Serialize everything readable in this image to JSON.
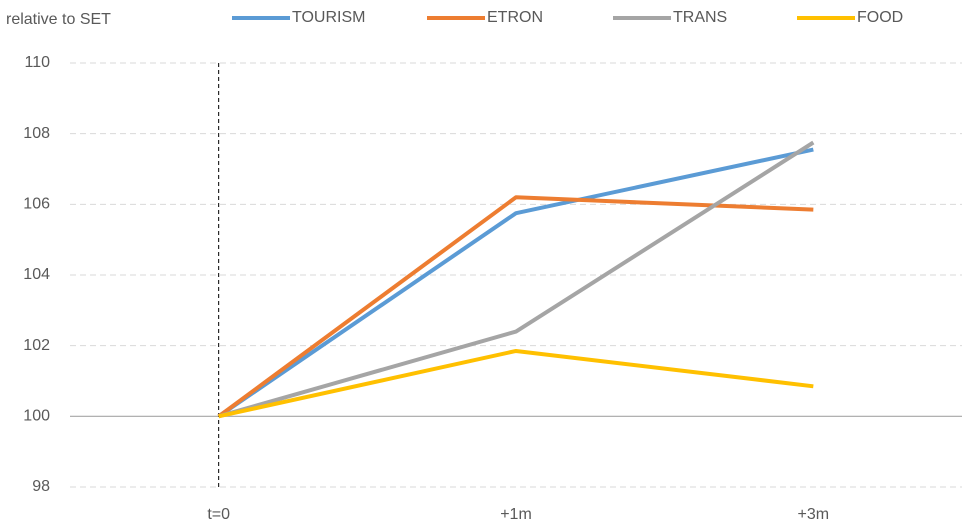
{
  "chart_data": {
    "type": "line",
    "subtitle": "relative to SET",
    "categories": [
      "t=0",
      "+1m",
      "+3m"
    ],
    "series": [
      {
        "name": "TOURISM",
        "color": "#5b9bd5",
        "values": [
          100,
          105.75,
          107.55
        ]
      },
      {
        "name": "ETRON",
        "color": "#ed7d31",
        "values": [
          100,
          106.2,
          105.85
        ]
      },
      {
        "name": "TRANS",
        "color": "#a5a5a5",
        "values": [
          100,
          102.4,
          107.75
        ]
      },
      {
        "name": "FOOD",
        "color": "#ffc000",
        "values": [
          100,
          101.85,
          100.85
        ]
      }
    ],
    "ylim": [
      98,
      110
    ],
    "yticks": [
      98,
      100,
      102,
      104,
      106,
      108,
      110
    ],
    "grid": true,
    "baseline": 100,
    "legend": "top"
  }
}
